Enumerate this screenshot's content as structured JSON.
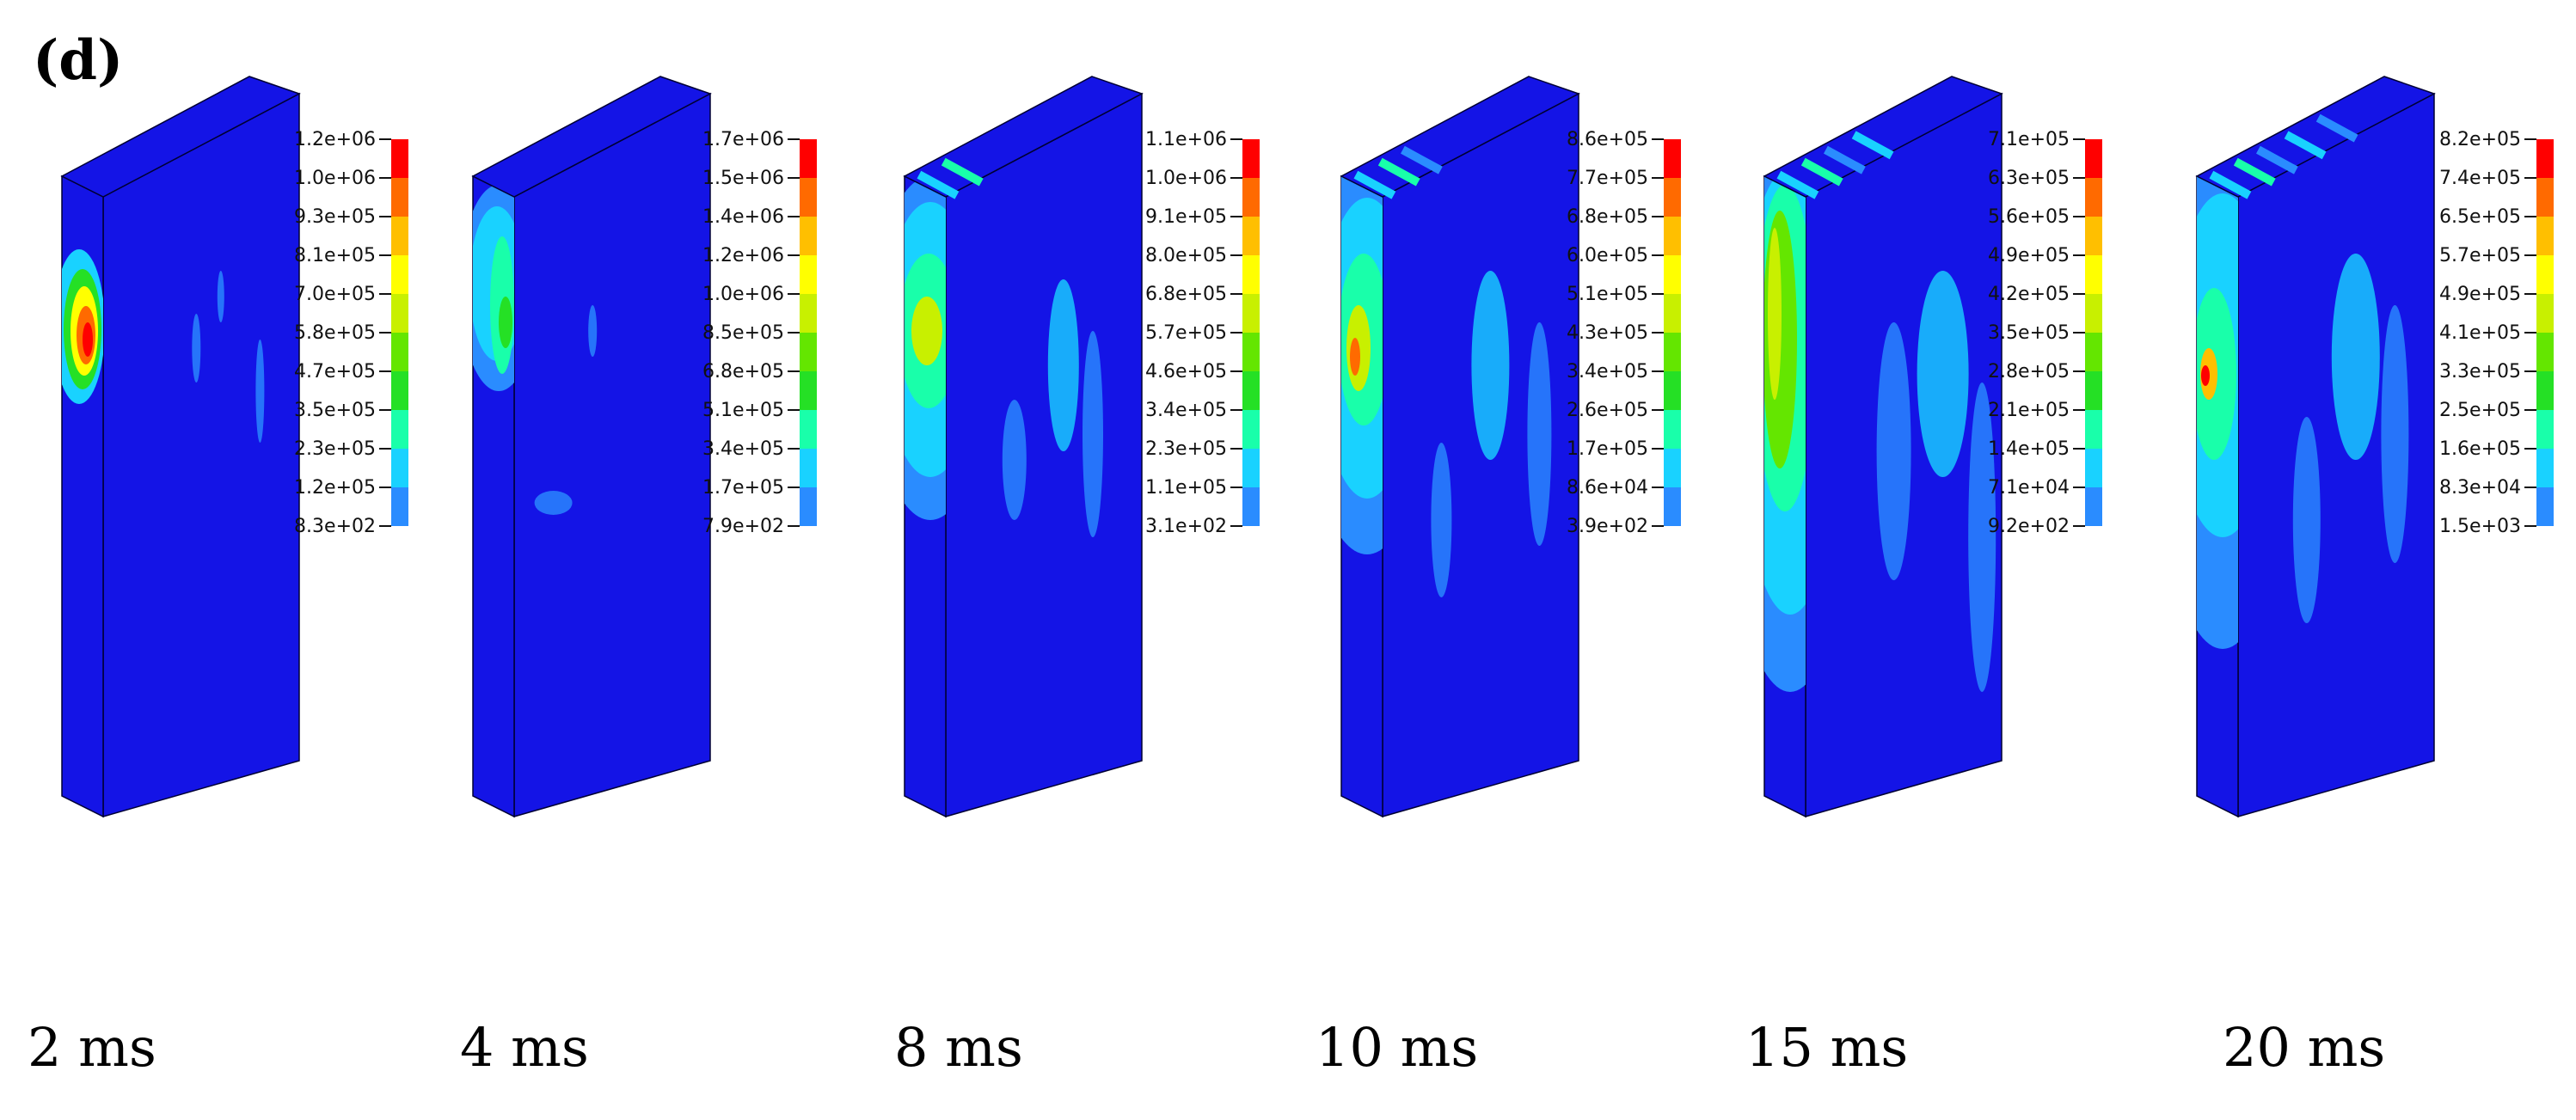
{
  "figure": {
    "panel_label": "(d)",
    "colors": {
      "bg": "#1414e6",
      "legend": [
        "#0000ff",
        "#2a8cff",
        "#19d2ff",
        "#19ffaa",
        "#25e025",
        "#64e600",
        "#c8f000",
        "#ffff00",
        "#ffbf00",
        "#ff6a00",
        "#ff0000"
      ]
    },
    "snapshots": [
      {
        "time": "2 ms",
        "legend": [
          "1.2e+06",
          "1.0e+06",
          "9.3e+05",
          "8.1e+05",
          "7.0e+05",
          "5.8e+05",
          "4.7e+05",
          "3.5e+05",
          "2.3e+05",
          "1.2e+05",
          "8.3e+02"
        ]
      },
      {
        "time": "4 ms",
        "legend": [
          "1.7e+06",
          "1.5e+06",
          "1.4e+06",
          "1.2e+06",
          "1.0e+06",
          "8.5e+05",
          "6.8e+05",
          "5.1e+05",
          "3.4e+05",
          "1.7e+05",
          "7.9e+02"
        ]
      },
      {
        "time": "8 ms",
        "legend": [
          "1.1e+06",
          "1.0e+06",
          "9.1e+05",
          "8.0e+05",
          "6.8e+05",
          "5.7e+05",
          "4.6e+05",
          "3.4e+05",
          "2.3e+05",
          "1.1e+05",
          "3.1e+02"
        ]
      },
      {
        "time": "10 ms",
        "legend": [
          "8.6e+05",
          "7.7e+05",
          "6.8e+05",
          "6.0e+05",
          "5.1e+05",
          "4.3e+05",
          "3.4e+05",
          "2.6e+05",
          "1.7e+05",
          "8.6e+04",
          "3.9e+02"
        ]
      },
      {
        "time": "15 ms",
        "legend": [
          "7.1e+05",
          "6.3e+05",
          "5.6e+05",
          "4.9e+05",
          "4.2e+05",
          "3.5e+05",
          "2.8e+05",
          "2.1e+05",
          "1.4e+05",
          "7.1e+04",
          "9.2e+02"
        ]
      },
      {
        "time": "20 ms",
        "legend": [
          "8.2e+05",
          "7.4e+05",
          "6.5e+05",
          "5.7e+05",
          "4.9e+05",
          "4.1e+05",
          "3.3e+05",
          "2.5e+05",
          "1.6e+05",
          "8.3e+04",
          "1.5e+03"
        ]
      }
    ]
  }
}
